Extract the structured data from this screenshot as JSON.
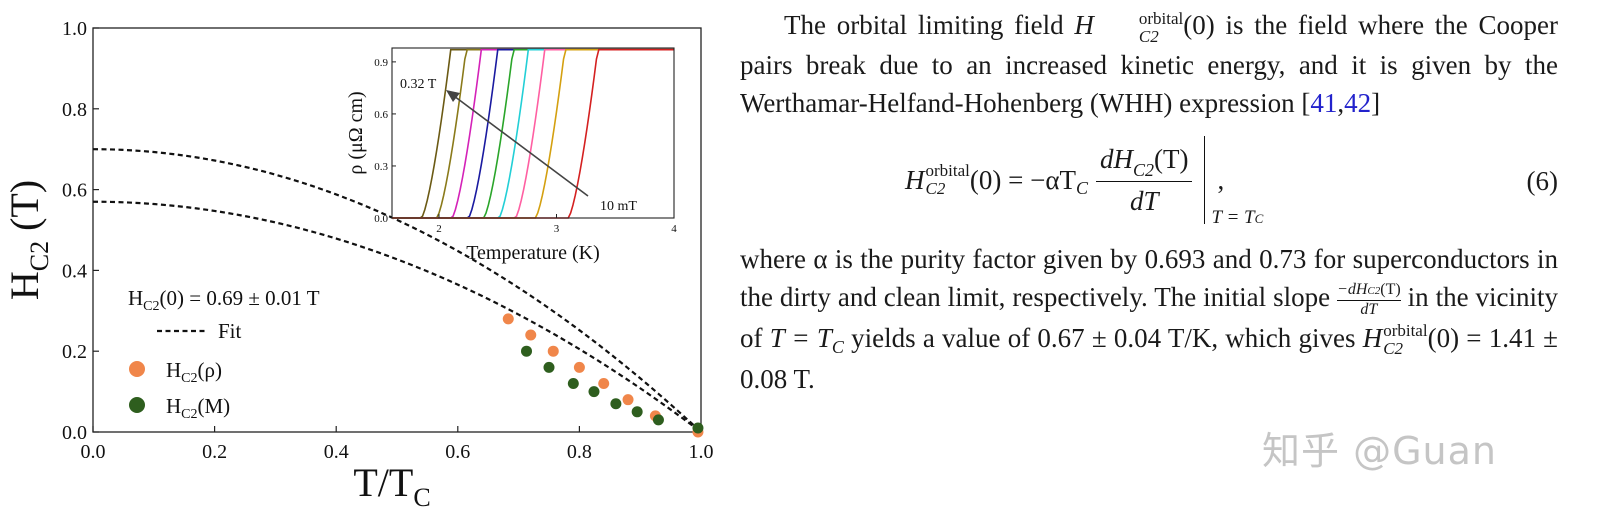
{
  "chart_data": [
    {
      "type": "scatter",
      "title": "",
      "xlabel": "T/T",
      "xlabel_sub": "C",
      "ylabel": "H",
      "ylabel_sub": "C2",
      "ylabel_unit": " (T)",
      "xlim": [
        0.0,
        1.0
      ],
      "ylim": [
        0.0,
        1.0
      ],
      "xticks": [
        "0.0",
        "0.2",
        "0.4",
        "0.6",
        "0.8",
        "1.0"
      ],
      "yticks": [
        "0.0",
        "0.2",
        "0.4",
        "0.6",
        "0.8",
        "1.0"
      ],
      "annotation": {
        "prefix": "H",
        "sub": "C2",
        "rest": "(0) = 0.69 ± 0.01 T"
      },
      "legend": {
        "fit": "Fit",
        "rho": {
          "prefix": "H",
          "sub": "C2",
          "rest": "(ρ)"
        },
        "m": {
          "prefix": "H",
          "sub": "C2",
          "rest": "(M)"
        }
      },
      "series": [
        {
          "name": "H_C2(ρ)",
          "color": "#f0864a",
          "x": [
            0.683,
            0.72,
            0.757,
            0.8,
            0.84,
            0.88,
            0.925,
            0.995
          ],
          "y": [
            0.28,
            0.24,
            0.2,
            0.16,
            0.12,
            0.08,
            0.04,
            0.0
          ]
        },
        {
          "name": "H_C2(M)",
          "color": "#2e5e1e",
          "x": [
            0.713,
            0.75,
            0.79,
            0.824,
            0.86,
            0.895,
            0.93,
            0.995
          ],
          "y": [
            0.2,
            0.16,
            0.12,
            0.1,
            0.07,
            0.05,
            0.03,
            0.01
          ]
        },
        {
          "name": "Fit (H_C2(0)=0.70)",
          "style": "dashed",
          "h0": 0.7
        },
        {
          "name": "Fit (H_C2(0)=0.57)",
          "style": "dashed",
          "h0": 0.57
        }
      ]
    },
    {
      "type": "line",
      "title": "inset",
      "xlabel": "Temperature (K)",
      "ylabel": "ρ (μΩ cm)",
      "xlim": [
        1.6,
        4.0
      ],
      "ylim": [
        0.0,
        0.98
      ],
      "xticks": [
        "2",
        "3",
        "4"
      ],
      "yticks": [
        "0.0",
        "0.3",
        "0.6",
        "0.9"
      ],
      "label_high": "0.32 T",
      "label_low": "10 mT",
      "series": [
        {
          "name": "0.32 T",
          "color": "#6b5a14",
          "tc": 2.05
        },
        {
          "name": "c2",
          "color": "#8a7a1a",
          "tc": 2.18
        },
        {
          "name": "c3",
          "color": "#d422b8",
          "tc": 2.31
        },
        {
          "name": "c4",
          "color": "#1a1aa0",
          "tc": 2.45
        },
        {
          "name": "c5",
          "color": "#2aa52a",
          "tc": 2.58
        },
        {
          "name": "c6",
          "color": "#22cfd6",
          "tc": 2.71
        },
        {
          "name": "c7",
          "color": "#ff5fa2",
          "tc": 2.85
        },
        {
          "name": "c8",
          "color": "#d4a010",
          "tc": 3.02
        },
        {
          "name": "10 mT",
          "color": "#d42020",
          "tc": 3.3
        }
      ]
    }
  ],
  "text": {
    "p1": {
      "t1": "The orbital limiting field ",
      "sym": "H",
      "sup": "orbital",
      "sub": "C2",
      "t2": "(0) is the field where the Cooper pairs break due to an increased kinetic energy, and it is given by the Werthamar-Helfand-Hohenberg (WHH) expression [",
      "ref1": "41",
      "comma": ",",
      "ref2": "42",
      "t3": "]"
    },
    "eq": {
      "lhs_sym": "H",
      "lhs_sup": "orbital",
      "lhs_sub": "C2",
      "lhs_rest": "(0) = −αT",
      "lhs_tc_sub": "C",
      "num": "dH",
      "num_sub": "C2",
      "num_rest": "(T)",
      "den": "dT",
      "eval": "T = T",
      "eval_sub": "C",
      "trail": ",",
      "number": "(6)"
    },
    "p2": {
      "t1": "where α is the purity factor given by 0.693 and 0.73 for superconductors in the dirty and clean limit, respectively. The initial slope ",
      "frac_num": "−dH",
      "frac_num_sub": "C2",
      "frac_num_rest": "(T)",
      "frac_den": "dT",
      "t2": " in the vicinity of ",
      "tsym": "T = T",
      "tsub": "C",
      "t3": " yields a value of 0.67 ± 0.04 T/K, which gives ",
      "hsym": "H",
      "hsup": "orbital",
      "hsub": "C2",
      "t4": "(0) = 1.41 ± 0.08 T."
    },
    "watermark": "知乎 @Guan"
  }
}
